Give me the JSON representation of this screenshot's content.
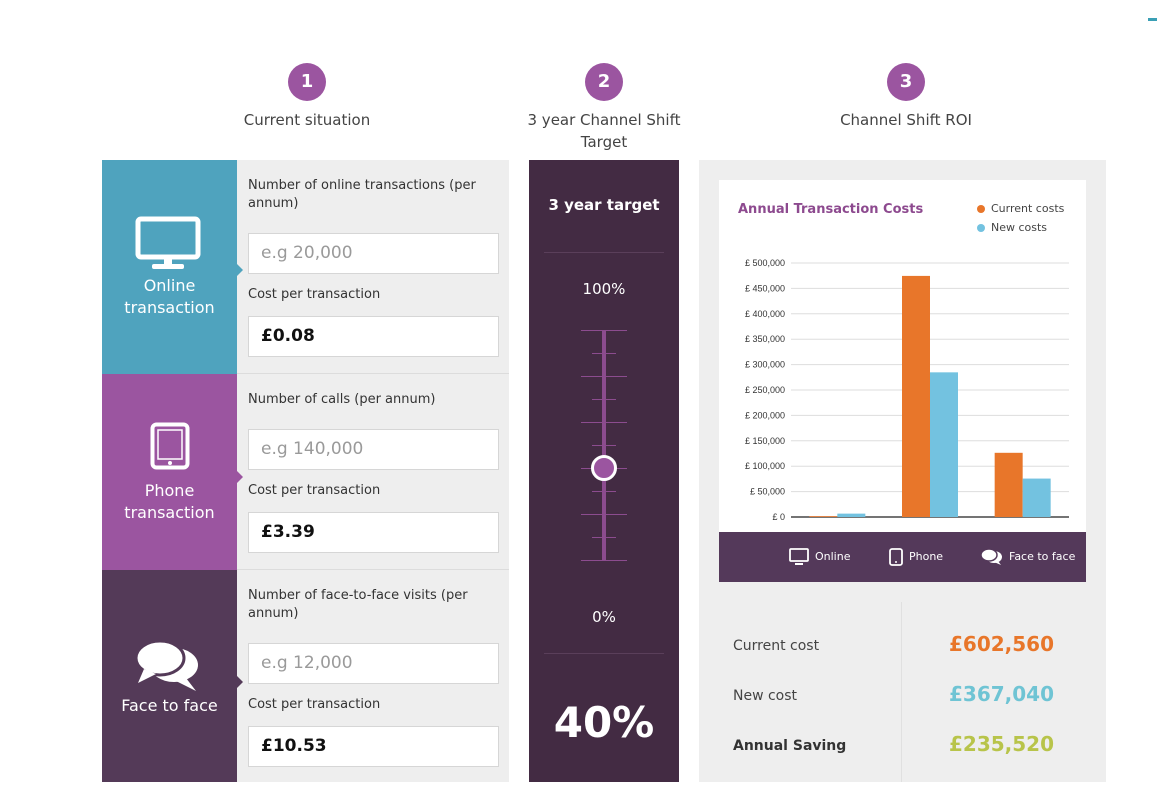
{
  "steps": [
    {
      "num": "1",
      "label": "Current situation"
    },
    {
      "num": "2",
      "label": "3 year Channel Shift Target"
    },
    {
      "num": "3",
      "label": "Channel Shift ROI"
    }
  ],
  "channels": {
    "online": {
      "name_line1": "Online",
      "name_line2": "transaction",
      "volume_label": "Number of online transactions (per annum)",
      "volume_placeholder": "e.g 20,000",
      "cost_label": "Cost per transaction",
      "cost_value": "£0.08",
      "color": "#4fa3be"
    },
    "phone": {
      "name_line1": "Phone",
      "name_line2": "transaction",
      "volume_label": "Number of calls (per annum)",
      "volume_placeholder": "e.g 140,000",
      "cost_label": "Cost per transaction",
      "cost_value": "£3.39",
      "color": "#9b55a0"
    },
    "face": {
      "name_line1": "Face to face",
      "volume_label": "Number of face-to-face visits (per annum)",
      "volume_placeholder": "e.g 12,000",
      "cost_label": "Cost per transaction",
      "cost_value": "£10.53",
      "color": "#543a58"
    }
  },
  "target": {
    "heading": "3 year target",
    "max_label": "100%",
    "min_label": "0%",
    "value_text": "40%",
    "slider_fraction": 0.4
  },
  "chart_data": {
    "type": "bar",
    "title": "Annual Transaction Costs",
    "categories": [
      "Online",
      "Phone",
      "Face to face"
    ],
    "series": [
      {
        "name": "Current costs",
        "color": "#e8762a",
        "values": [
          1600,
          474600,
          126360
        ]
      },
      {
        "name": "New costs",
        "color": "#73c2e0",
        "values": [
          6640,
          284760,
          75640
        ]
      }
    ],
    "ylim": [
      0,
      500000
    ],
    "yticks": [
      0,
      50000,
      100000,
      150000,
      200000,
      250000,
      300000,
      350000,
      400000,
      450000,
      500000
    ],
    "ytick_labels": [
      "£ 0",
      "£ 50,000",
      "£ 100,000",
      "£ 150,000",
      "£ 200,000",
      "£ 250,000",
      "£ 300,000",
      "£ 350,000",
      "£ 400,000",
      "£ 450,000",
      "£ 500,000"
    ],
    "grid": true,
    "legend_position": "top-right"
  },
  "summary": {
    "current_label": "Current cost",
    "current_value": "£602,560",
    "current_color": "#e8762a",
    "new_label": "New cost",
    "new_value": "£367,040",
    "new_color": "#6fc4d4",
    "saving_label": "Annual Saving",
    "saving_value": "£235,520",
    "saving_color": "#b8c44a"
  }
}
